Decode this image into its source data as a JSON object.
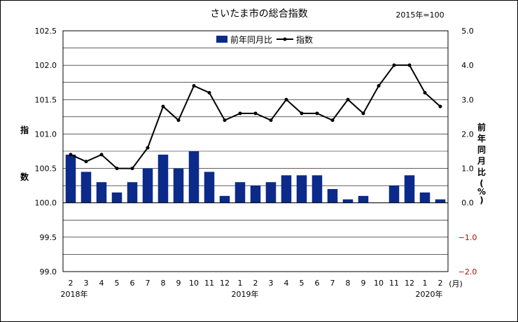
{
  "chart_data": {
    "type": "bar",
    "title": "さいたま市の総合指数",
    "subtitle": "2015年=100",
    "ylabel_left": "指数",
    "ylabel_right": "前年同月比(%)",
    "x_unit": "(月)",
    "year_labels": [
      "2018年",
      "2019年",
      "2020年"
    ],
    "categories": [
      "2",
      "3",
      "4",
      "5",
      "6",
      "7",
      "8",
      "9",
      "10",
      "11",
      "12",
      "1",
      "2",
      "3",
      "4",
      "5",
      "6",
      "7",
      "8",
      "9",
      "10",
      "11",
      "12",
      "1",
      "2"
    ],
    "y_left_ticks": [
      "102.5",
      "102.0",
      "101.5",
      "101.0",
      "100.5",
      "100.0",
      "99.5",
      "99.0"
    ],
    "y_right_ticks": [
      "5.0",
      "4.0",
      "3.0",
      "2.0",
      "1.0",
      "0.0",
      "−1.0",
      "−2.0"
    ],
    "ylim_left": [
      99.0,
      102.5
    ],
    "ylim_right": [
      -2.0,
      5.0
    ],
    "legend": {
      "position": "top-center",
      "bar_label": "前年同月比",
      "line_label": "指数"
    },
    "series": [
      {
        "name": "前年同月比",
        "type": "bar",
        "axis": "right",
        "values": [
          1.4,
          0.9,
          0.6,
          0.3,
          0.6,
          1.0,
          1.4,
          1.0,
          1.5,
          0.9,
          0.2,
          0.6,
          0.5,
          0.6,
          0.8,
          0.8,
          0.8,
          0.4,
          0.1,
          0.2,
          0.0,
          0.5,
          0.8,
          0.3,
          0.1
        ]
      },
      {
        "name": "指数",
        "type": "line",
        "axis": "left",
        "values": [
          100.7,
          100.6,
          100.7,
          100.5,
          100.5,
          100.8,
          101.4,
          101.2,
          101.7,
          101.6,
          101.2,
          101.3,
          101.3,
          101.2,
          101.5,
          101.3,
          101.3,
          101.2,
          101.5,
          101.3,
          101.7,
          102.0,
          102.0,
          101.6,
          101.4
        ]
      }
    ],
    "colors": {
      "bar": "#0c2a8a",
      "line": "#000000",
      "negative_tick": "#cc0000"
    },
    "grid": true
  }
}
